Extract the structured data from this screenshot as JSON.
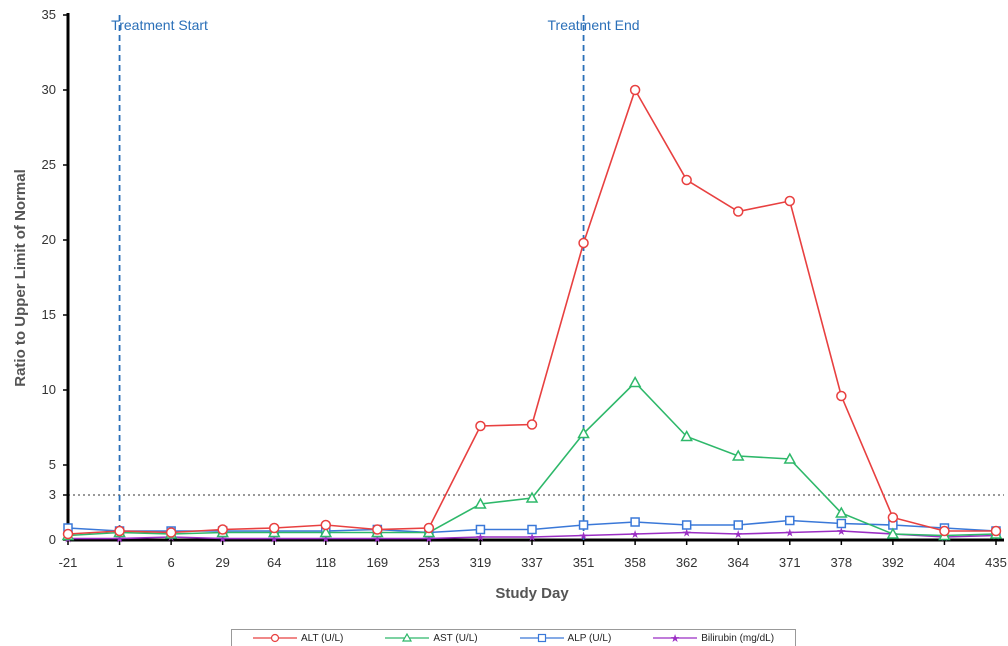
{
  "chart_data": {
    "type": "line",
    "title": "",
    "xlabel": "Study Day",
    "ylabel": "Ratio to Upper Limit of Normal",
    "categories": [
      "-21",
      "1",
      "6",
      "29",
      "64",
      "118",
      "169",
      "253",
      "319",
      "337",
      "351",
      "358",
      "362",
      "364",
      "371",
      "378",
      "392",
      "404",
      "435"
    ],
    "ylim": [
      0,
      35
    ],
    "yticks": [
      0,
      3,
      5,
      10,
      15,
      20,
      25,
      30,
      35
    ],
    "grid": false,
    "legend_position": "bottom",
    "series": [
      {
        "name": "ALT (U/L)",
        "color": "#e84040",
        "marker": "circle",
        "values": [
          0.4,
          0.6,
          0.5,
          0.7,
          0.8,
          1.0,
          0.7,
          0.8,
          7.6,
          7.7,
          19.8,
          30.0,
          24.0,
          21.9,
          22.6,
          9.6,
          1.5,
          0.6,
          0.6
        ]
      },
      {
        "name": "AST (U/L)",
        "color": "#2eb86a",
        "marker": "triangle",
        "values": [
          0.3,
          0.5,
          0.4,
          0.5,
          0.5,
          0.5,
          0.5,
          0.5,
          2.4,
          2.8,
          7.1,
          10.5,
          6.9,
          5.6,
          5.4,
          1.8,
          0.4,
          0.3,
          0.4
        ]
      },
      {
        "name": "ALP (U/L)",
        "color": "#3a78d8",
        "marker": "square",
        "values": [
          0.8,
          0.6,
          0.6,
          0.6,
          0.6,
          0.6,
          0.7,
          0.5,
          0.7,
          0.7,
          1.0,
          1.2,
          1.0,
          1.0,
          1.3,
          1.1,
          1.0,
          0.8,
          0.6
        ]
      },
      {
        "name": "Bilirubin (mg/dL)",
        "color": "#9b2fc4",
        "marker": "star",
        "values": [
          0.1,
          0.1,
          0.2,
          0.1,
          0.1,
          0.1,
          0.1,
          0.1,
          0.2,
          0.2,
          0.3,
          0.4,
          0.5,
          0.4,
          0.5,
          0.6,
          0.4,
          0.2,
          0.3
        ]
      }
    ],
    "reference_line": {
      "value": 3,
      "style": "dotted",
      "color": "#333333"
    },
    "annotations": [
      {
        "text": "Treatment Start",
        "at_category": "1",
        "color": "#2a6fb8"
      },
      {
        "text": "Treatment End",
        "at_category": "351",
        "color": "#2a6fb8"
      }
    ]
  }
}
